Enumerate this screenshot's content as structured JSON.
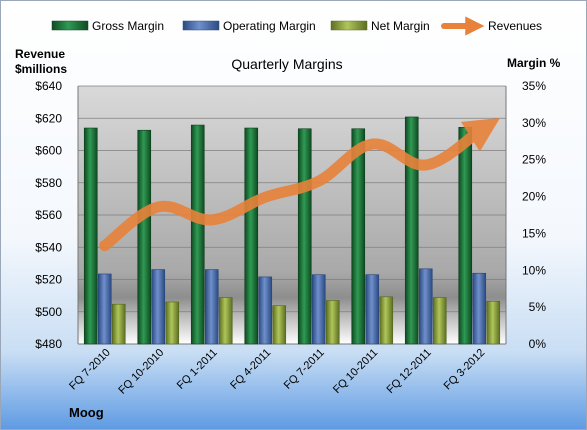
{
  "chart_data": {
    "type": "bar",
    "title": "Quarterly Margins",
    "company": "Moog",
    "left_axis_label": [
      "Revenue",
      "$millions"
    ],
    "right_axis_label": "Margin %",
    "categories": [
      "FQ 7-2010",
      "FQ 10-2010",
      "FQ 1-2011",
      "FQ 4-2011",
      "FQ 7-2011",
      "FQ 10-2011",
      "FQ 12-2011",
      "FQ 3-2012"
    ],
    "left_axis": {
      "min": 480,
      "max": 640,
      "step": 20,
      "ticks": [
        "$480",
        "$500",
        "$520",
        "$540",
        "$560",
        "$580",
        "$600",
        "$620",
        "$640"
      ]
    },
    "right_axis": {
      "min": 0,
      "max": 35,
      "step": 5,
      "ticks": [
        "0%",
        "5%",
        "10%",
        "15%",
        "20%",
        "25%",
        "30%",
        "35%"
      ]
    },
    "series": [
      {
        "name": "Gross Margin",
        "type": "bar",
        "axis": "right",
        "color": "#1e7b3c",
        "values": [
          29.3,
          29.0,
          29.7,
          29.3,
          29.2,
          29.2,
          30.8,
          29.4
        ]
      },
      {
        "name": "Operating Margin",
        "type": "bar",
        "axis": "right",
        "color": "#4a6fb0",
        "values": [
          9.5,
          10.1,
          10.1,
          9.1,
          9.4,
          9.4,
          10.2,
          9.6
        ]
      },
      {
        "name": "Net Margin",
        "type": "bar",
        "axis": "right",
        "color": "#8aa13a",
        "values": [
          5.4,
          5.7,
          6.3,
          5.2,
          5.9,
          6.4,
          6.3,
          5.8
        ]
      },
      {
        "name": "Revenues",
        "type": "line",
        "axis": "left",
        "color": "#e8823a",
        "values": [
          541,
          565,
          557,
          571,
          581,
          604,
          591,
          612
        ]
      }
    ],
    "legend": [
      "Gross Margin",
      "Operating Margin",
      "Net Margin",
      "Revenues"
    ],
    "legend_position": "top",
    "grid": true
  }
}
